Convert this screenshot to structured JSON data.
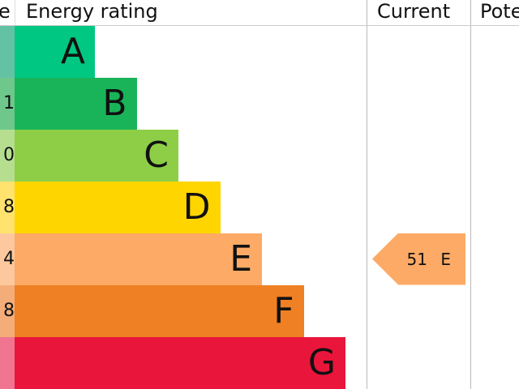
{
  "header": {
    "score": "e",
    "rating": "Energy rating",
    "current": "Current",
    "potential": "Pote"
  },
  "chart_data": {
    "type": "bar",
    "categories": [
      "A",
      "B",
      "C",
      "D",
      "E",
      "F",
      "G"
    ],
    "score_fragments": [
      "",
      "1",
      "0",
      "8",
      "4",
      "8",
      ""
    ],
    "colors": [
      "#00c781",
      "#19b459",
      "#8dce46",
      "#ffd500",
      "#fcaa65",
      "#ef8023",
      "#e9153b"
    ],
    "score_colors": [
      "#64c2a4",
      "#6ec88c",
      "#b5df8e",
      "#ffe36e",
      "#fdc89d",
      "#f4ad79",
      "#f07590"
    ],
    "relative_length": [
      1,
      2,
      3,
      4,
      5,
      6,
      7
    ],
    "current": {
      "value": 51,
      "band": "E",
      "label": "51 E",
      "color": "#fcaa65"
    }
  }
}
